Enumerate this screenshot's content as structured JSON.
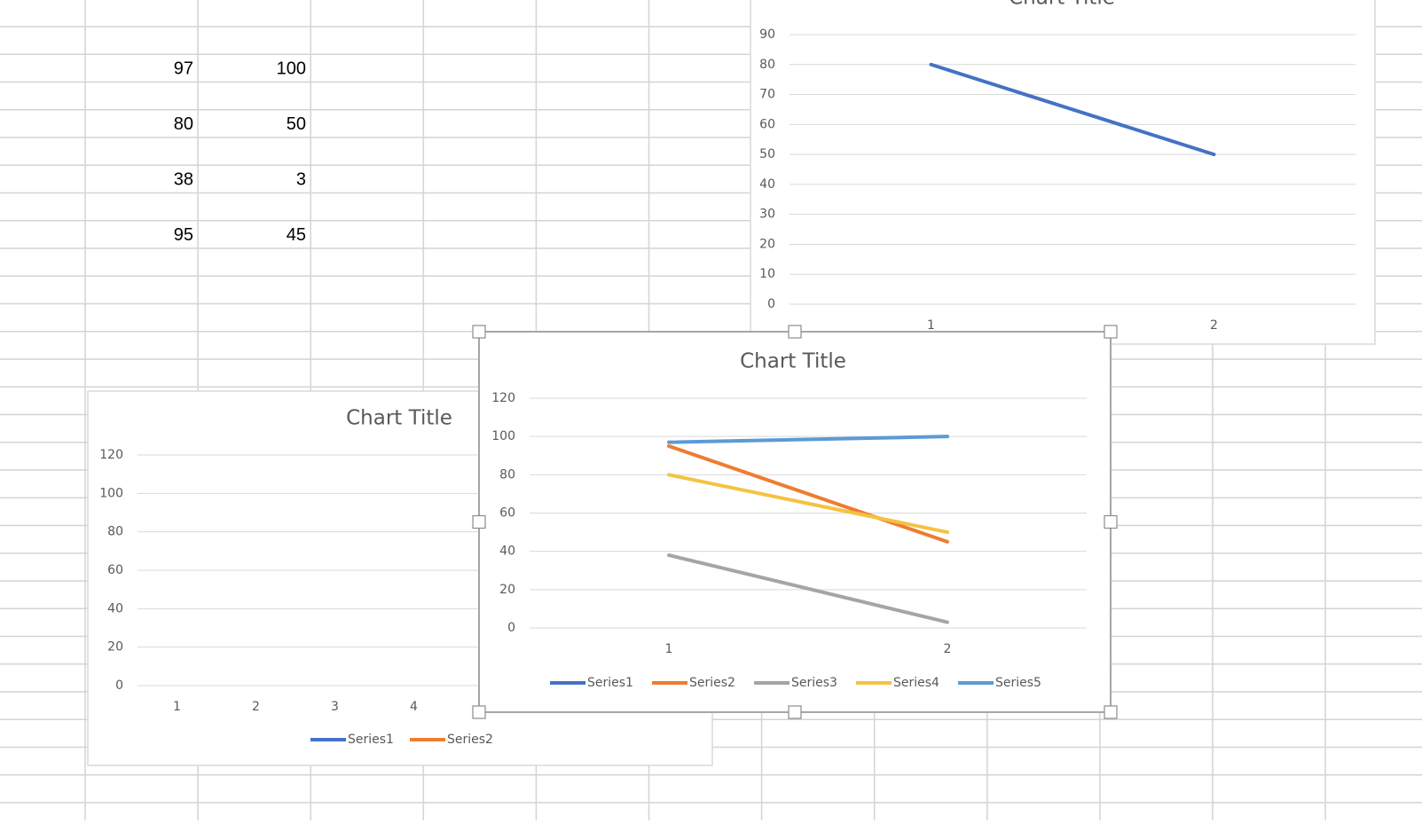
{
  "sheet": {
    "rows": [
      [
        97,
        100
      ],
      [
        80,
        50
      ],
      [
        38,
        3
      ],
      [
        95,
        45
      ]
    ]
  },
  "chart_data": [
    {
      "type": "line",
      "title": "Chart Title",
      "categories": [
        1,
        2,
        3,
        4
      ],
      "series": [
        {
          "name": "Series1",
          "color": "#4472c4",
          "values": [
            null,
            null,
            null,
            null
          ]
        },
        {
          "name": "Series2",
          "color": "#ed7d31",
          "values": [
            null,
            null,
            null,
            null
          ]
        }
      ],
      "ylim": [
        0,
        120
      ],
      "yticks": [
        0,
        20,
        40,
        60,
        80,
        100,
        120
      ],
      "grid": true,
      "legend": "bottom"
    },
    {
      "type": "line",
      "title": "Chart Title",
      "categories": [
        1,
        2
      ],
      "series": [
        {
          "color": "#4472c4",
          "values": [
            80,
            50
          ]
        }
      ],
      "ylim": [
        0,
        90
      ],
      "yticks": [
        0,
        10,
        20,
        30,
        40,
        50,
        60,
        70,
        80,
        90
      ],
      "grid": true
    },
    {
      "type": "line",
      "title": "Chart Title",
      "categories": [
        1,
        2
      ],
      "series": [
        {
          "name": "Series1",
          "color": "#4472c4",
          "values": [
            null,
            null
          ]
        },
        {
          "name": "Series2",
          "color": "#ed7d31",
          "values": [
            95,
            45
          ]
        },
        {
          "name": "Series3",
          "color": "#a5a5a5",
          "values": [
            38,
            3
          ]
        },
        {
          "name": "Series4",
          "color": "#f5c242",
          "values": [
            80,
            50
          ]
        },
        {
          "name": "Series5",
          "color": "#5b9bd5",
          "values": [
            97,
            100
          ]
        }
      ],
      "ylim": [
        0,
        120
      ],
      "yticks": [
        0,
        20,
        40,
        60,
        80,
        100,
        120
      ],
      "grid": true,
      "legend": "bottom"
    }
  ]
}
